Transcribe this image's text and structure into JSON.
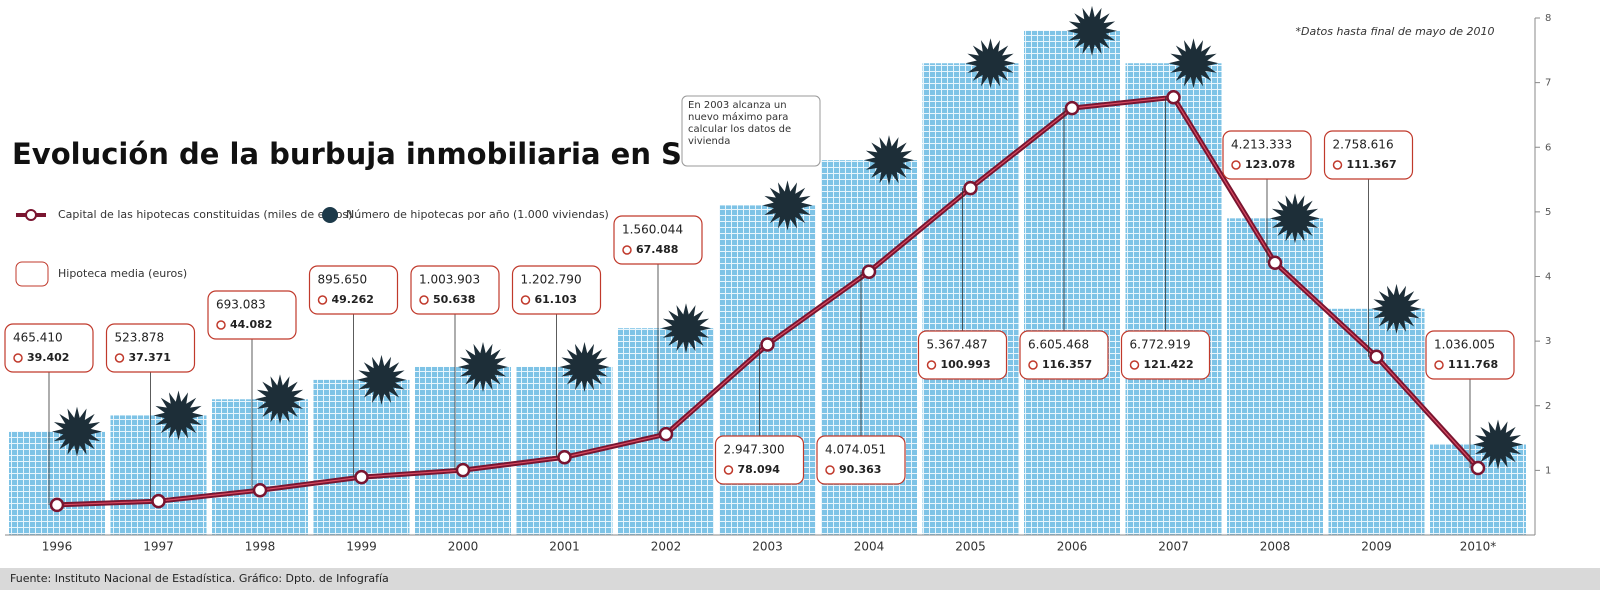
{
  "chart_data": {
    "type": "bar-line",
    "title": "Evolución de la burbuja inmobiliaria en Sevilla",
    "note": "*Datos hasta final de mayo de 2010",
    "annotation": "En 2003 alcanza un nuevo máximo para calcular los datos de vivienda",
    "source": "Fuente: Instituto Nacional de Estadística. Gráfico: Dpto. de Infografía",
    "categories": [
      "1996",
      "1997",
      "1998",
      "1999",
      "2000",
      "2001",
      "2002",
      "2003",
      "2004",
      "2005",
      "2006",
      "2007",
      "2008",
      "2009",
      "2010*"
    ],
    "ylim": [
      0,
      8000000
    ],
    "yticks": [
      {
        "value": 1000000,
        "label": "1"
      },
      {
        "value": 2000000,
        "label": "2"
      },
      {
        "value": 3000000,
        "label": "3"
      },
      {
        "value": 4000000,
        "label": "4"
      },
      {
        "value": 5000000,
        "label": "5"
      },
      {
        "value": 6000000,
        "label": "6"
      },
      {
        "value": 7000000,
        "label": "7"
      },
      {
        "value": 8000000,
        "label": "8"
      }
    ],
    "y2lim": [
      0,
      8
    ],
    "series": [
      {
        "name": "Número de hipotecas por año (1.000 viviendas)",
        "type": "bar",
        "axis": "y2",
        "color": "#7ec3e6",
        "values": [
          1.6,
          1.85,
          2.1,
          2.4,
          2.6,
          2.6,
          3.2,
          5.1,
          5.8,
          7.3,
          7.8,
          7.3,
          4.9,
          3.5,
          1.4
        ]
      },
      {
        "name": "Capital de las hipotecas constituidas (miles de euros)",
        "type": "line",
        "color": "#7a1530",
        "values": [
          465410,
          523878,
          693083,
          895650,
          1003903,
          1202790,
          1560044,
          2947300,
          4074051,
          5367487,
          6605468,
          6772919,
          4213333,
          2758616,
          1036005
        ],
        "value_labels": [
          "465.410",
          "523.878",
          "693.083",
          "895.650",
          "1.003.903",
          "1.202.790",
          "1.560.044",
          "2.947.300",
          "4.074.051",
          "5.367.487",
          "6.605.468",
          "6.772.919",
          "4.213.333",
          "2.758.616",
          "1.036.005"
        ]
      },
      {
        "name": "Hipoteca media (euros)",
        "type": "label",
        "color": "#c0392b",
        "values": [
          39402,
          37371,
          44082,
          49262,
          50638,
          61103,
          67488,
          78094,
          90363,
          100993,
          116357,
          121422,
          123078,
          111367,
          111768
        ],
        "value_labels": [
          "39.402",
          "37.371",
          "44.082",
          "49.262",
          "50.638",
          "61.103",
          "67.488",
          "78.094",
          "90.363",
          "100.993",
          "116.357",
          "121.422",
          "123.078",
          "111.367",
          "111.768"
        ]
      }
    ]
  }
}
